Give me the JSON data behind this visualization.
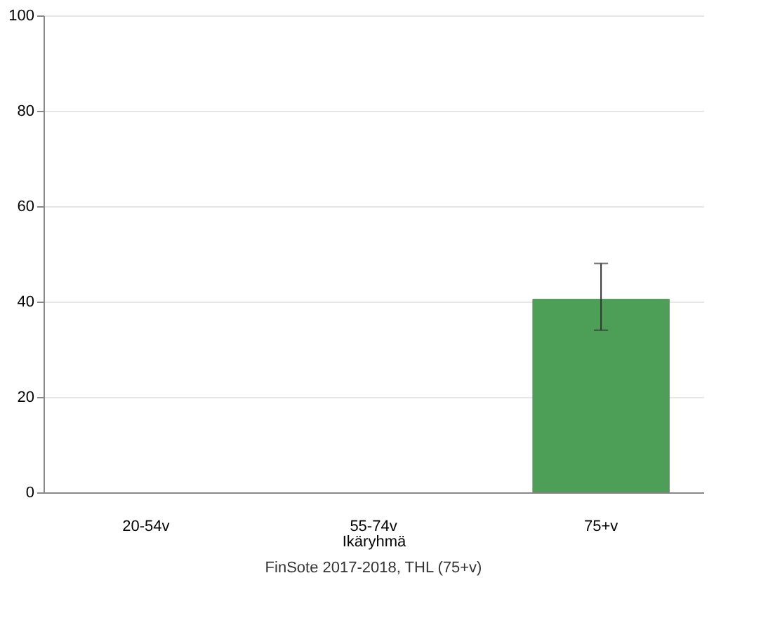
{
  "chart_data": {
    "type": "bar",
    "categories": [
      "20-54v",
      "55-74v",
      "75+v"
    ],
    "values": [
      null,
      null,
      40.5
    ],
    "color": "#4d9e57",
    "errors": [
      null,
      null,
      [
        34,
        48
      ]
    ],
    "xlabel": "Ikäryhmä",
    "ylim": [
      0,
      100
    ],
    "yticks": [
      0,
      20,
      40,
      60,
      80,
      100
    ],
    "grid": "y",
    "annotations": [
      "FinSote 2017-2018, THL (75+v)"
    ]
  }
}
